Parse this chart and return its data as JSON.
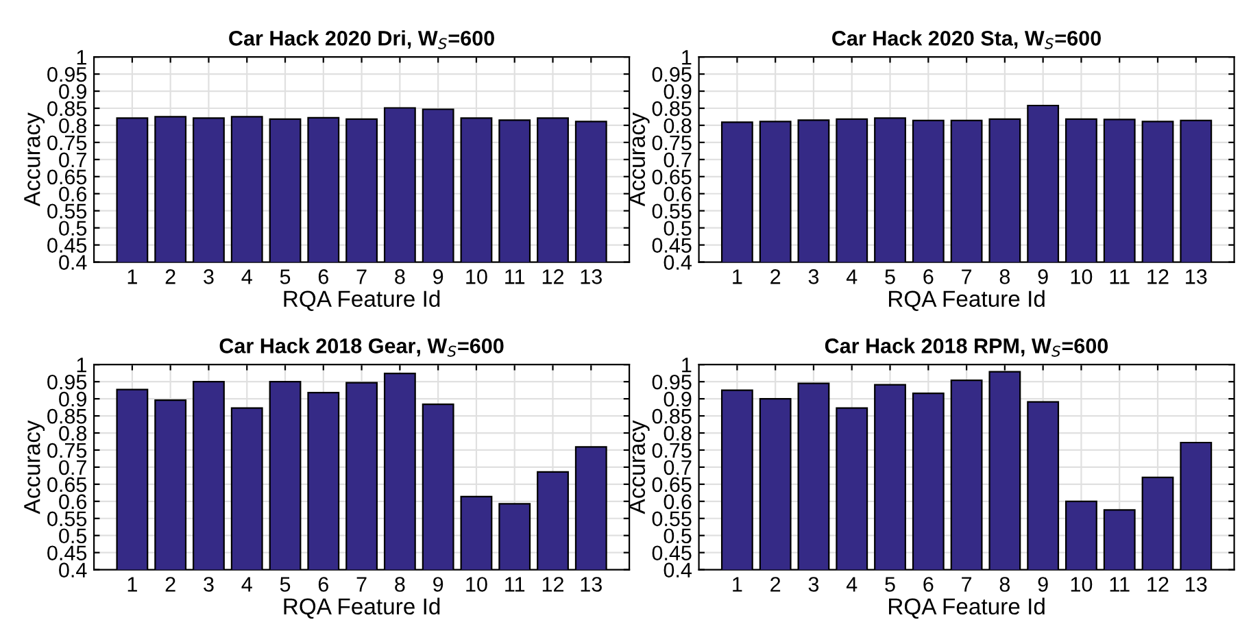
{
  "chart_data": [
    {
      "type": "bar",
      "title": "Car Hack 2020 Dri, W$_{S}$=600",
      "xlabel": "RQA Feature Id",
      "ylabel": "Accuracy",
      "categories": [
        "1",
        "2",
        "3",
        "4",
        "5",
        "6",
        "7",
        "8",
        "9",
        "10",
        "11",
        "12",
        "13"
      ],
      "values": [
        0.821,
        0.825,
        0.821,
        0.825,
        0.818,
        0.822,
        0.818,
        0.851,
        0.847,
        0.821,
        0.815,
        0.821,
        0.811
      ],
      "color": "#352a86",
      "ylim": [
        0.4,
        1
      ],
      "yticks": [
        0.4,
        0.45,
        0.5,
        0.55,
        0.6,
        0.65,
        0.7,
        0.75,
        0.8,
        0.85,
        0.9,
        0.95,
        1
      ],
      "grid": true
    },
    {
      "type": "bar",
      "title": "Car Hack 2020 Sta, W$_{S}$=600",
      "xlabel": "RQA Feature Id",
      "ylabel": "Accuracy",
      "categories": [
        "1",
        "2",
        "3",
        "4",
        "5",
        "6",
        "7",
        "8",
        "9",
        "10",
        "11",
        "12",
        "13"
      ],
      "values": [
        0.809,
        0.811,
        0.815,
        0.818,
        0.821,
        0.814,
        0.814,
        0.818,
        0.858,
        0.818,
        0.817,
        0.811,
        0.814
      ],
      "color": "#352a86",
      "ylim": [
        0.4,
        1
      ],
      "yticks": [
        0.4,
        0.45,
        0.5,
        0.55,
        0.6,
        0.65,
        0.7,
        0.75,
        0.8,
        0.85,
        0.9,
        0.95,
        1
      ],
      "grid": true
    },
    {
      "type": "bar",
      "title": "Car Hack 2018 Gear, W$_{S}$=600",
      "xlabel": "RQA Feature Id",
      "ylabel": "Accuracy",
      "categories": [
        "1",
        "2",
        "3",
        "4",
        "5",
        "6",
        "7",
        "8",
        "9",
        "10",
        "11",
        "12",
        "13"
      ],
      "values": [
        0.927,
        0.896,
        0.95,
        0.873,
        0.95,
        0.918,
        0.947,
        0.974,
        0.884,
        0.614,
        0.593,
        0.686,
        0.759
      ],
      "color": "#352a86",
      "ylim": [
        0.4,
        1
      ],
      "yticks": [
        0.4,
        0.45,
        0.5,
        0.55,
        0.6,
        0.65,
        0.7,
        0.75,
        0.8,
        0.85,
        0.9,
        0.95,
        1
      ],
      "grid": true
    },
    {
      "type": "bar",
      "title": "Car Hack 2018 RPM, W$_{S}$=600",
      "xlabel": "RQA Feature Id",
      "ylabel": "Accuracy",
      "categories": [
        "1",
        "2",
        "3",
        "4",
        "5",
        "6",
        "7",
        "8",
        "9",
        "10",
        "11",
        "12",
        "13"
      ],
      "values": [
        0.925,
        0.9,
        0.945,
        0.873,
        0.941,
        0.916,
        0.954,
        0.979,
        0.891,
        0.6,
        0.575,
        0.67,
        0.772
      ],
      "color": "#352a86",
      "ylim": [
        0.4,
        1
      ],
      "yticks": [
        0.4,
        0.45,
        0.5,
        0.55,
        0.6,
        0.65,
        0.7,
        0.75,
        0.8,
        0.85,
        0.9,
        0.95,
        1
      ],
      "grid": true
    }
  ]
}
